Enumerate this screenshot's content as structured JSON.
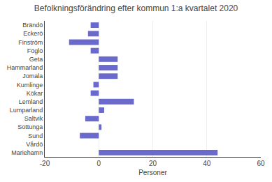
{
  "chart_data": {
    "type": "bar",
    "orientation": "horizontal",
    "title": "Befolkningsförändring efter kommun 1:a kvartalet 2020",
    "xlabel": "Personer",
    "categories": [
      "Brändö",
      "Eckerö",
      "Finström",
      "Föglö",
      "Geta",
      "Hammarland",
      "Jomala",
      "Kumlinge",
      "Kökar",
      "Lemland",
      "Lumparland",
      "Saltvik",
      "Sottunga",
      "Sund",
      "Vårdö",
      "Mariehamn"
    ],
    "values": [
      -3,
      -4,
      -11,
      -3,
      7,
      7,
      7,
      -2,
      -3,
      13,
      2,
      -5,
      1,
      -7,
      0,
      44
    ],
    "color": "#6a6acd",
    "xlim": [
      -20,
      60
    ],
    "xticks": [
      -20,
      0,
      20,
      40,
      60
    ],
    "grid": true
  }
}
